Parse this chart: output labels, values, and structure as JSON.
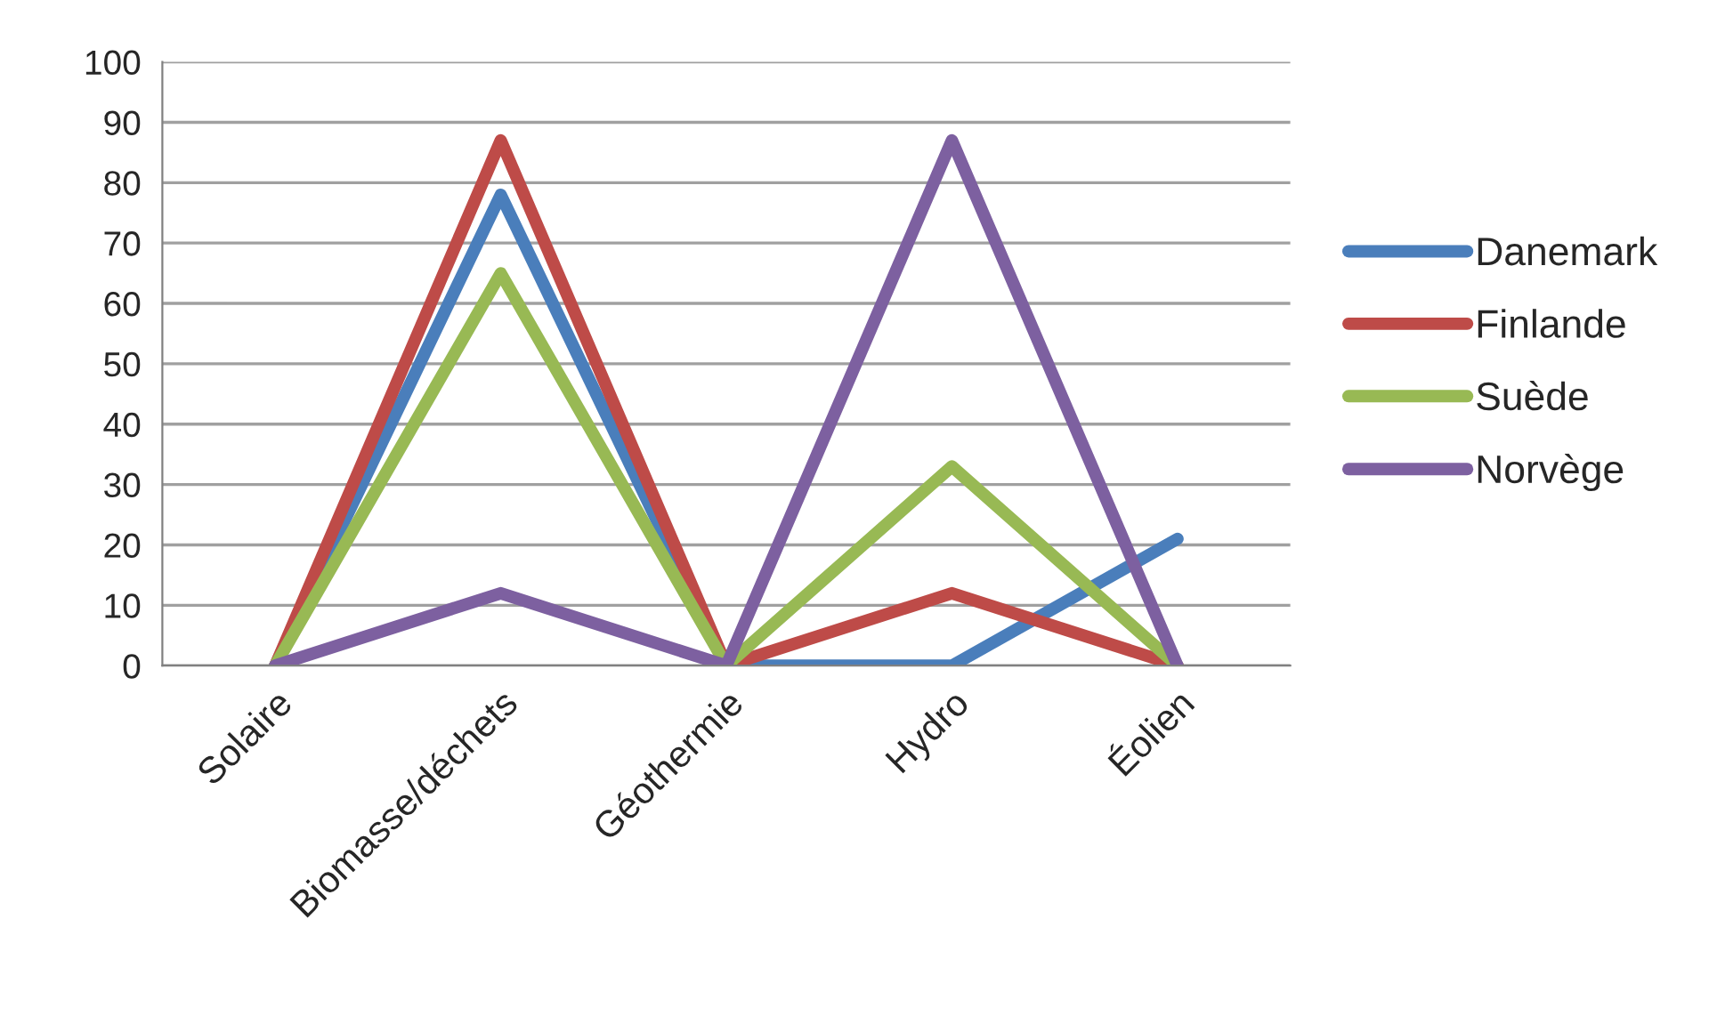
{
  "chart_data": {
    "type": "line",
    "categories": [
      "Solaire",
      "Biomasse/déchets",
      "Géothermie",
      "Hydro",
      "Éolien"
    ],
    "series": [
      {
        "name": "Danemark",
        "color": "#4a7ebb",
        "values": [
          0,
          78,
          0,
          0,
          21
        ]
      },
      {
        "name": "Finlande",
        "color": "#be4b48",
        "values": [
          0,
          87,
          0,
          12,
          0
        ]
      },
      {
        "name": "Suède",
        "color": "#98b954",
        "values": [
          0,
          65,
          0,
          33,
          0
        ]
      },
      {
        "name": "Norvège",
        "color": "#7d60a0",
        "values": [
          0,
          12,
          0,
          87,
          0
        ]
      }
    ],
    "ylim": [
      0,
      100
    ],
    "yticks": [
      0,
      10,
      20,
      30,
      40,
      50,
      60,
      70,
      80,
      90,
      100
    ],
    "grid": "y",
    "legend": "right",
    "marker": "none",
    "line_style": "solid"
  }
}
